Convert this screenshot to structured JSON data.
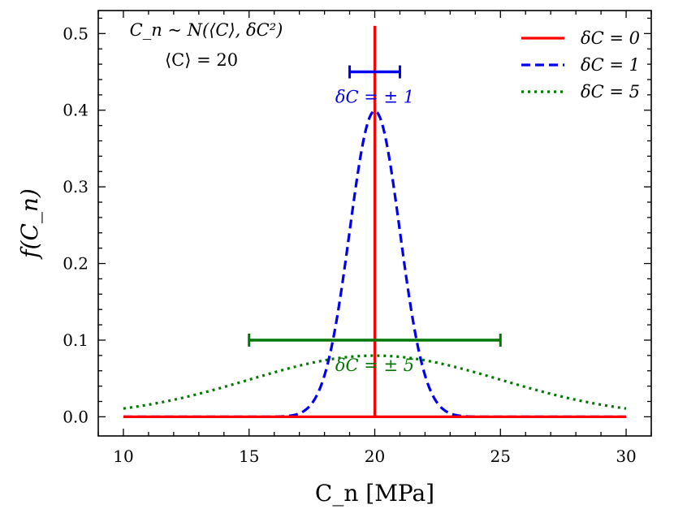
{
  "chart_data": {
    "type": "line",
    "title": "",
    "xlabel": "C_n [MPa]",
    "ylabel": "f(C_n)",
    "xlim": [
      9,
      31
    ],
    "ylim": [
      -0.025,
      0.53
    ],
    "xticks": [
      10,
      15,
      20,
      25,
      30
    ],
    "yticks": [
      0.0,
      0.1,
      0.2,
      0.3,
      0.4,
      0.5
    ],
    "xtick_labels": [
      "10",
      "15",
      "20",
      "25",
      "30"
    ],
    "ytick_labels": [
      "0.0",
      "0.1",
      "0.2",
      "0.3",
      "0.4",
      "0.5"
    ],
    "x_range": [
      10,
      30
    ],
    "mean": 20,
    "series": [
      {
        "name": "δC = 0",
        "sigma": 0,
        "color": "#ff0000",
        "style": "solid",
        "spike_height": 0.51
      },
      {
        "name": "δC = 1",
        "sigma": 1,
        "color": "#0000ee",
        "style": "dashed",
        "peak": 0.399
      },
      {
        "name": "δC = 5",
        "sigma": 5,
        "color": "#007700",
        "style": "dotted",
        "peak": 0.08
      }
    ],
    "errorbars": [
      {
        "center": 20,
        "half_width": 1,
        "y": 0.45,
        "color": "#0000ee",
        "label": "δC = ± 1"
      },
      {
        "center": 20,
        "half_width": 5,
        "y": 0.1,
        "color": "#007700",
        "label": "δC = ± 5"
      }
    ],
    "annotation_lines": [
      "C_n ~ N(⟨C⟩, δC²)",
      "⟨C⟩ = 20"
    ],
    "legend": {
      "position": "top-right",
      "entries": [
        "δC = 0",
        "δC = 1",
        "δC = 5"
      ]
    }
  }
}
